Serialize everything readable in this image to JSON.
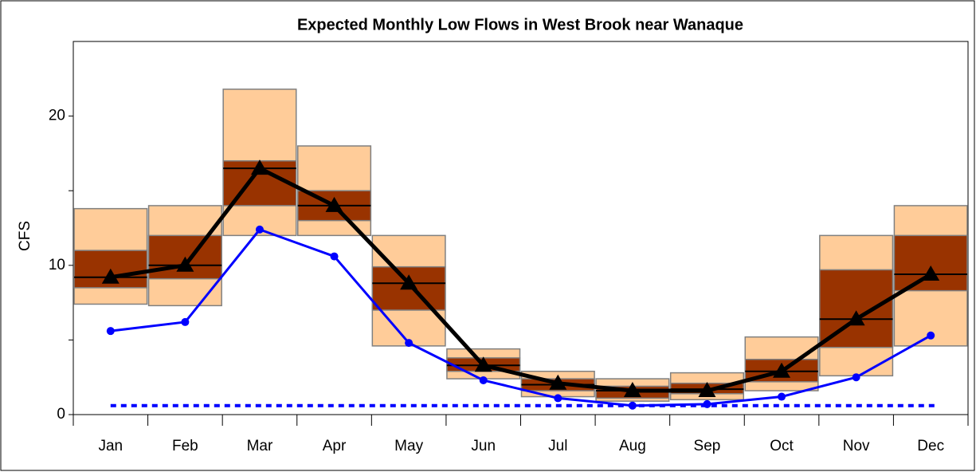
{
  "chart_data": {
    "type": "box-line",
    "title": "Expected Monthly Low Flows in West Brook near Wanaque",
    "ylabel": "CFS",
    "categories": [
      "Jan",
      "Feb",
      "Mar",
      "Apr",
      "May",
      "Jun",
      "Jul",
      "Aug",
      "Sep",
      "Oct",
      "Nov",
      "Dec"
    ],
    "boxes": {
      "outer_color": "#ffcc99",
      "inner_color": "#993300",
      "edge_color": "#808080",
      "low": [
        7.4,
        7.3,
        12,
        12,
        4.6,
        2.4,
        1.2,
        0.9,
        1.0,
        1.6,
        2.6,
        4.6
      ],
      "q1": [
        8.5,
        9.1,
        14,
        13,
        7,
        2.9,
        1.6,
        1.1,
        1.4,
        2.2,
        4.5,
        8.3
      ],
      "median": [
        9.2,
        10,
        16.5,
        14,
        8.8,
        3.3,
        2.0,
        1.6,
        1.7,
        2.9,
        6.4,
        9.4
      ],
      "q3": [
        11,
        12,
        17,
        15,
        9.9,
        3.8,
        2.4,
        1.9,
        2.1,
        3.7,
        9.7,
        12
      ],
      "high": [
        13.8,
        14,
        21.8,
        18,
        12,
        4.4,
        2.9,
        2.4,
        2.8,
        5.2,
        12,
        14
      ]
    },
    "series": [
      {
        "color": "#000000",
        "marker": "triangle",
        "values": [
          9.2,
          10,
          16.5,
          14,
          8.8,
          3.3,
          2.1,
          1.6,
          1.6,
          2.9,
          6.4,
          9.4
        ]
      },
      {
        "color": "#0000ff",
        "marker": "circle",
        "values": [
          5.6,
          6.2,
          12.4,
          10.6,
          4.8,
          2.3,
          1.1,
          0.6,
          0.7,
          1.2,
          2.5,
          5.3
        ]
      }
    ],
    "reference_line": {
      "value": 0.6,
      "color": "#0000ff"
    },
    "ylim": [
      0,
      25
    ],
    "yticks": [
      0,
      10,
      20
    ],
    "yminorticks": [
      5,
      15
    ]
  }
}
